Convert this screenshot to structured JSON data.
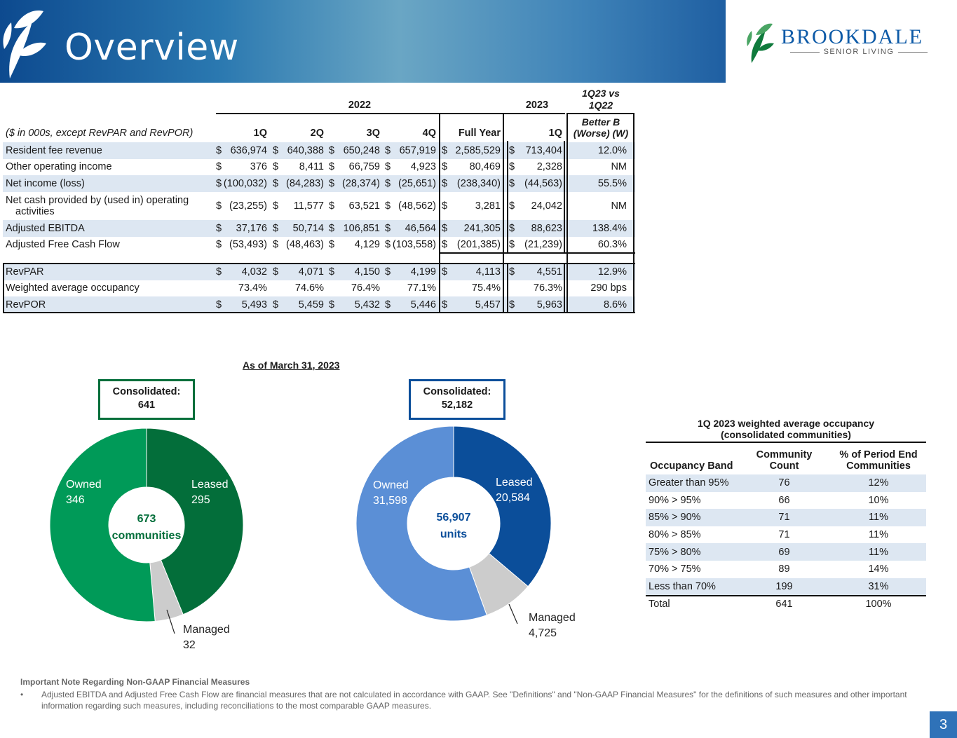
{
  "header": {
    "title": "Overview"
  },
  "logo": {
    "name": "BROOKDALE",
    "subtitle": "SENIOR LIVING"
  },
  "financial_table": {
    "year_headers": {
      "y2022": "2022",
      "y2023": "2023",
      "compare_line1": "1Q23 vs",
      "compare_line2": "1Q22"
    },
    "column_headers": {
      "label": "($ in 000s, except RevPAR and RevPOR)",
      "q1": "1Q",
      "q2": "2Q",
      "q3": "3Q",
      "q4": "4Q",
      "fy": "Full Year",
      "q1_2023": "1Q",
      "better_line1": "Better B",
      "better_line2": "(Worse) (W)"
    },
    "rows": [
      {
        "label": "Resident fee revenue",
        "cells": [
          [
            "$",
            "636,974"
          ],
          [
            "$",
            "640,388"
          ],
          [
            "$",
            "650,248"
          ],
          [
            "$",
            "657,919"
          ],
          [
            "$",
            "2,585,529"
          ],
          [
            "$",
            "713,404"
          ]
        ],
        "change": "12.0%"
      },
      {
        "label": "Other operating income",
        "cells": [
          [
            "$",
            "376"
          ],
          [
            "$",
            "8,411"
          ],
          [
            "$",
            "66,759"
          ],
          [
            "$",
            "4,923"
          ],
          [
            "$",
            "80,469"
          ],
          [
            "$",
            "2,328"
          ]
        ],
        "change": "NM"
      },
      {
        "label": "Net income (loss)",
        "cells": [
          [
            "$",
            "(100,032)"
          ],
          [
            "$",
            "(84,283)"
          ],
          [
            "$",
            "(28,374)"
          ],
          [
            "$",
            "(25,651)"
          ],
          [
            "$",
            "(238,340)"
          ],
          [
            "$",
            "(44,563)"
          ]
        ],
        "change": "55.5%"
      },
      {
        "label": "Net cash provided by (used in) operating",
        "label2": "activities",
        "cells": [
          [
            "$",
            "(23,255)"
          ],
          [
            "$",
            "11,577"
          ],
          [
            "$",
            "63,521"
          ],
          [
            "$",
            "(48,562)"
          ],
          [
            "$",
            "3,281"
          ],
          [
            "$",
            "24,042"
          ]
        ],
        "change": "NM"
      },
      {
        "label": "Adjusted EBITDA",
        "cells": [
          [
            "$",
            "37,176"
          ],
          [
            "$",
            "50,714"
          ],
          [
            "$",
            "106,851"
          ],
          [
            "$",
            "46,564"
          ],
          [
            "$",
            "241,305"
          ],
          [
            "$",
            "88,623"
          ]
        ],
        "change": "138.4%"
      },
      {
        "label": "Adjusted Free Cash Flow",
        "cells": [
          [
            "$",
            "(53,493)"
          ],
          [
            "$",
            "(48,463)"
          ],
          [
            "$",
            "4,129"
          ],
          [
            "$",
            "(103,558)"
          ],
          [
            "$",
            "(201,385)"
          ],
          [
            "$",
            "(21,239)"
          ]
        ],
        "change": "60.3%"
      }
    ],
    "ops_rows": [
      {
        "label": "RevPAR",
        "cells": [
          [
            "$",
            "4,032"
          ],
          [
            "$",
            "4,071"
          ],
          [
            "$",
            "4,150"
          ],
          [
            "$",
            "4,199"
          ],
          [
            "$",
            "4,113"
          ],
          [
            "$",
            "4,551"
          ]
        ],
        "change": "12.9%"
      },
      {
        "label": "Weighted average occupancy",
        "cells": [
          [
            "",
            "73.4%"
          ],
          [
            "",
            "74.6%"
          ],
          [
            "",
            "76.4%"
          ],
          [
            "",
            "77.1%"
          ],
          [
            "",
            "75.4%"
          ],
          [
            "",
            "76.3%"
          ]
        ],
        "change": "290 bps"
      },
      {
        "label": "RevPOR",
        "cells": [
          [
            "$",
            "5,493"
          ],
          [
            "$",
            "5,459"
          ],
          [
            "$",
            "5,432"
          ],
          [
            "$",
            "5,446"
          ],
          [
            "$",
            "5,457"
          ],
          [
            "$",
            "5,963"
          ]
        ],
        "change": "8.6%"
      }
    ]
  },
  "as_of": "As of March 31, 2023",
  "communities_chart": {
    "consolidated_label": "Consolidated:",
    "consolidated_value": "641",
    "center_value": "673",
    "center_label": "communities",
    "segments": [
      {
        "name": "Leased",
        "value": 295,
        "value_text": "295",
        "color": "#036e3a"
      },
      {
        "name": "Managed",
        "value": 32,
        "value_text": "32",
        "color": "#cccccc"
      },
      {
        "name": "Owned",
        "value": 346,
        "value_text": "346",
        "color": "#009a58"
      }
    ]
  },
  "units_chart": {
    "consolidated_label": "Consolidated:",
    "consolidated_value": "52,182",
    "center_value": "56,907",
    "center_label": "units",
    "segments": [
      {
        "name": "Leased",
        "value": 20584,
        "value_text": "20,584",
        "color": "#0b4e9a"
      },
      {
        "name": "Managed",
        "value": 4725,
        "value_text": "4,725",
        "color": "#cccccc"
      },
      {
        "name": "Owned",
        "value": 31598,
        "value_text": "31,598",
        "color": "#5b8fd6"
      }
    ]
  },
  "occupancy_table": {
    "title_line1": "1Q 2023 weighted average occupancy",
    "title_line2": "(consolidated communities)",
    "headers": {
      "band": "Occupancy Band",
      "count_line1": "Community",
      "count_line2": "Count",
      "pct_line1": "% of Period End",
      "pct_line2": "Communities"
    },
    "rows": [
      {
        "band": "Greater than 95%",
        "count": "76",
        "pct": "12%"
      },
      {
        "band": "90% > 95%",
        "count": "66",
        "pct": "10%"
      },
      {
        "band": "85% > 90%",
        "count": "71",
        "pct": "11%"
      },
      {
        "band": "80% > 85%",
        "count": "71",
        "pct": "11%"
      },
      {
        "band": "75% > 80%",
        "count": "69",
        "pct": "11%"
      },
      {
        "band": "70% > 75%",
        "count": "89",
        "pct": "14%"
      },
      {
        "band": "Less than 70%",
        "count": "199",
        "pct": "31%"
      }
    ],
    "total": {
      "band": "Total",
      "count": "641",
      "pct": "100%"
    }
  },
  "footnote": {
    "heading": "Important Note Regarding Non-GAAP Financial Measures",
    "bullet": "•",
    "text": "Adjusted EBITDA and Adjusted Free Cash Flow are financial measures that are not calculated in accordance with GAAP. See \"Definitions\" and \"Non-GAAP Financial Measures\" for the definitions of such measures and other important information regarding such measures, including reconciliations to the most comparable GAAP measures."
  },
  "page_number": "3"
}
